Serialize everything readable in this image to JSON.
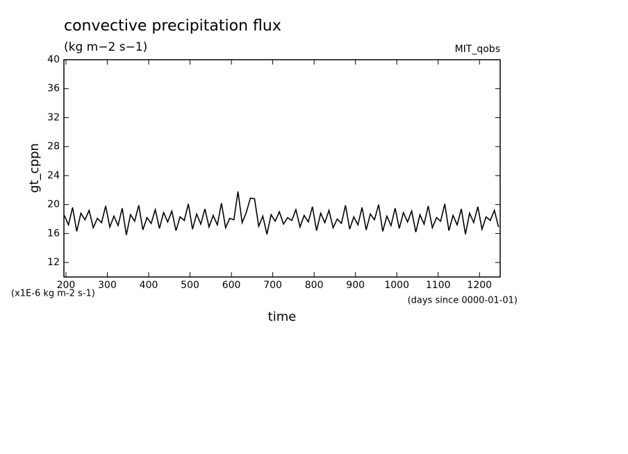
{
  "chart_data": {
    "type": "line",
    "title": "convective precipitation flux",
    "subtitle": "(kg m−2 s−1)",
    "experiment": "MIT_qobs",
    "ylabel": "gt_cppn",
    "xlabel": "time",
    "y_unit": "(x1E-6 kg m-2 s-1)",
    "x_unit": "(days since 0000-01-01)",
    "xlim": [
      195,
      1250
    ],
    "ylim": [
      10,
      40
    ],
    "xticks": [
      200,
      300,
      400,
      500,
      600,
      700,
      800,
      900,
      1000,
      1100,
      1200
    ],
    "yticks": [
      12,
      16,
      20,
      24,
      28,
      32,
      36,
      40
    ],
    "grid": false,
    "series": [
      {
        "name": "gt_cppn",
        "color": "#000000",
        "x": [
          196,
          206,
          216,
          226,
          236,
          246,
          256,
          266,
          276,
          286,
          296,
          306,
          316,
          326,
          336,
          346,
          356,
          366,
          376,
          386,
          396,
          406,
          416,
          426,
          436,
          446,
          456,
          466,
          476,
          486,
          496,
          506,
          516,
          526,
          536,
          546,
          556,
          566,
          576,
          586,
          596,
          606,
          616,
          626,
          636,
          646,
          656,
          666,
          676,
          686,
          696,
          706,
          716,
          726,
          736,
          746,
          756,
          766,
          776,
          786,
          796,
          806,
          816,
          826,
          836,
          846,
          856,
          866,
          876,
          886,
          896,
          906,
          916,
          926,
          936,
          946,
          956,
          966,
          976,
          986,
          996,
          1006,
          1016,
          1026,
          1036,
          1046,
          1056,
          1066,
          1076,
          1086,
          1096,
          1106,
          1116,
          1126,
          1136,
          1146,
          1156,
          1166,
          1176,
          1186,
          1196,
          1206,
          1216,
          1226,
          1236,
          1246
        ],
        "values": [
          18.5,
          17.2,
          19.6,
          16.3,
          18.8,
          17.9,
          19.2,
          16.8,
          18.1,
          17.5,
          19.8,
          16.9,
          18.4,
          17.1,
          19.5,
          15.8,
          18.6,
          17.7,
          19.9,
          16.5,
          18.2,
          17.4,
          19.3,
          16.7,
          18.9,
          17.6,
          19.1,
          16.4,
          18.3,
          17.8,
          20.1,
          16.6,
          18.7,
          17.3,
          19.4,
          16.9,
          18.5,
          17.2,
          20.2,
          16.8,
          18.1,
          17.9,
          21.8,
          17.5,
          18.9,
          20.9,
          20.8,
          17.0,
          18.4,
          15.9,
          18.6,
          17.7,
          19.0,
          17.3,
          18.2,
          17.8,
          19.3,
          16.9,
          18.5,
          17.6,
          19.7,
          16.4,
          18.8,
          17.5,
          19.2,
          16.8,
          18.0,
          17.4,
          19.9,
          16.6,
          18.3,
          17.2,
          19.6,
          16.5,
          18.7,
          17.9,
          20.0,
          16.3,
          18.4,
          17.1,
          19.5,
          16.7,
          18.9,
          17.6,
          19.1,
          16.2,
          18.6,
          17.3,
          19.8,
          16.8,
          18.2,
          17.7,
          20.1,
          16.4,
          18.5,
          17.2,
          19.4,
          15.9,
          18.8,
          17.5,
          19.7,
          16.6,
          18.3,
          17.8,
          19.2,
          16.9
        ]
      }
    ]
  }
}
